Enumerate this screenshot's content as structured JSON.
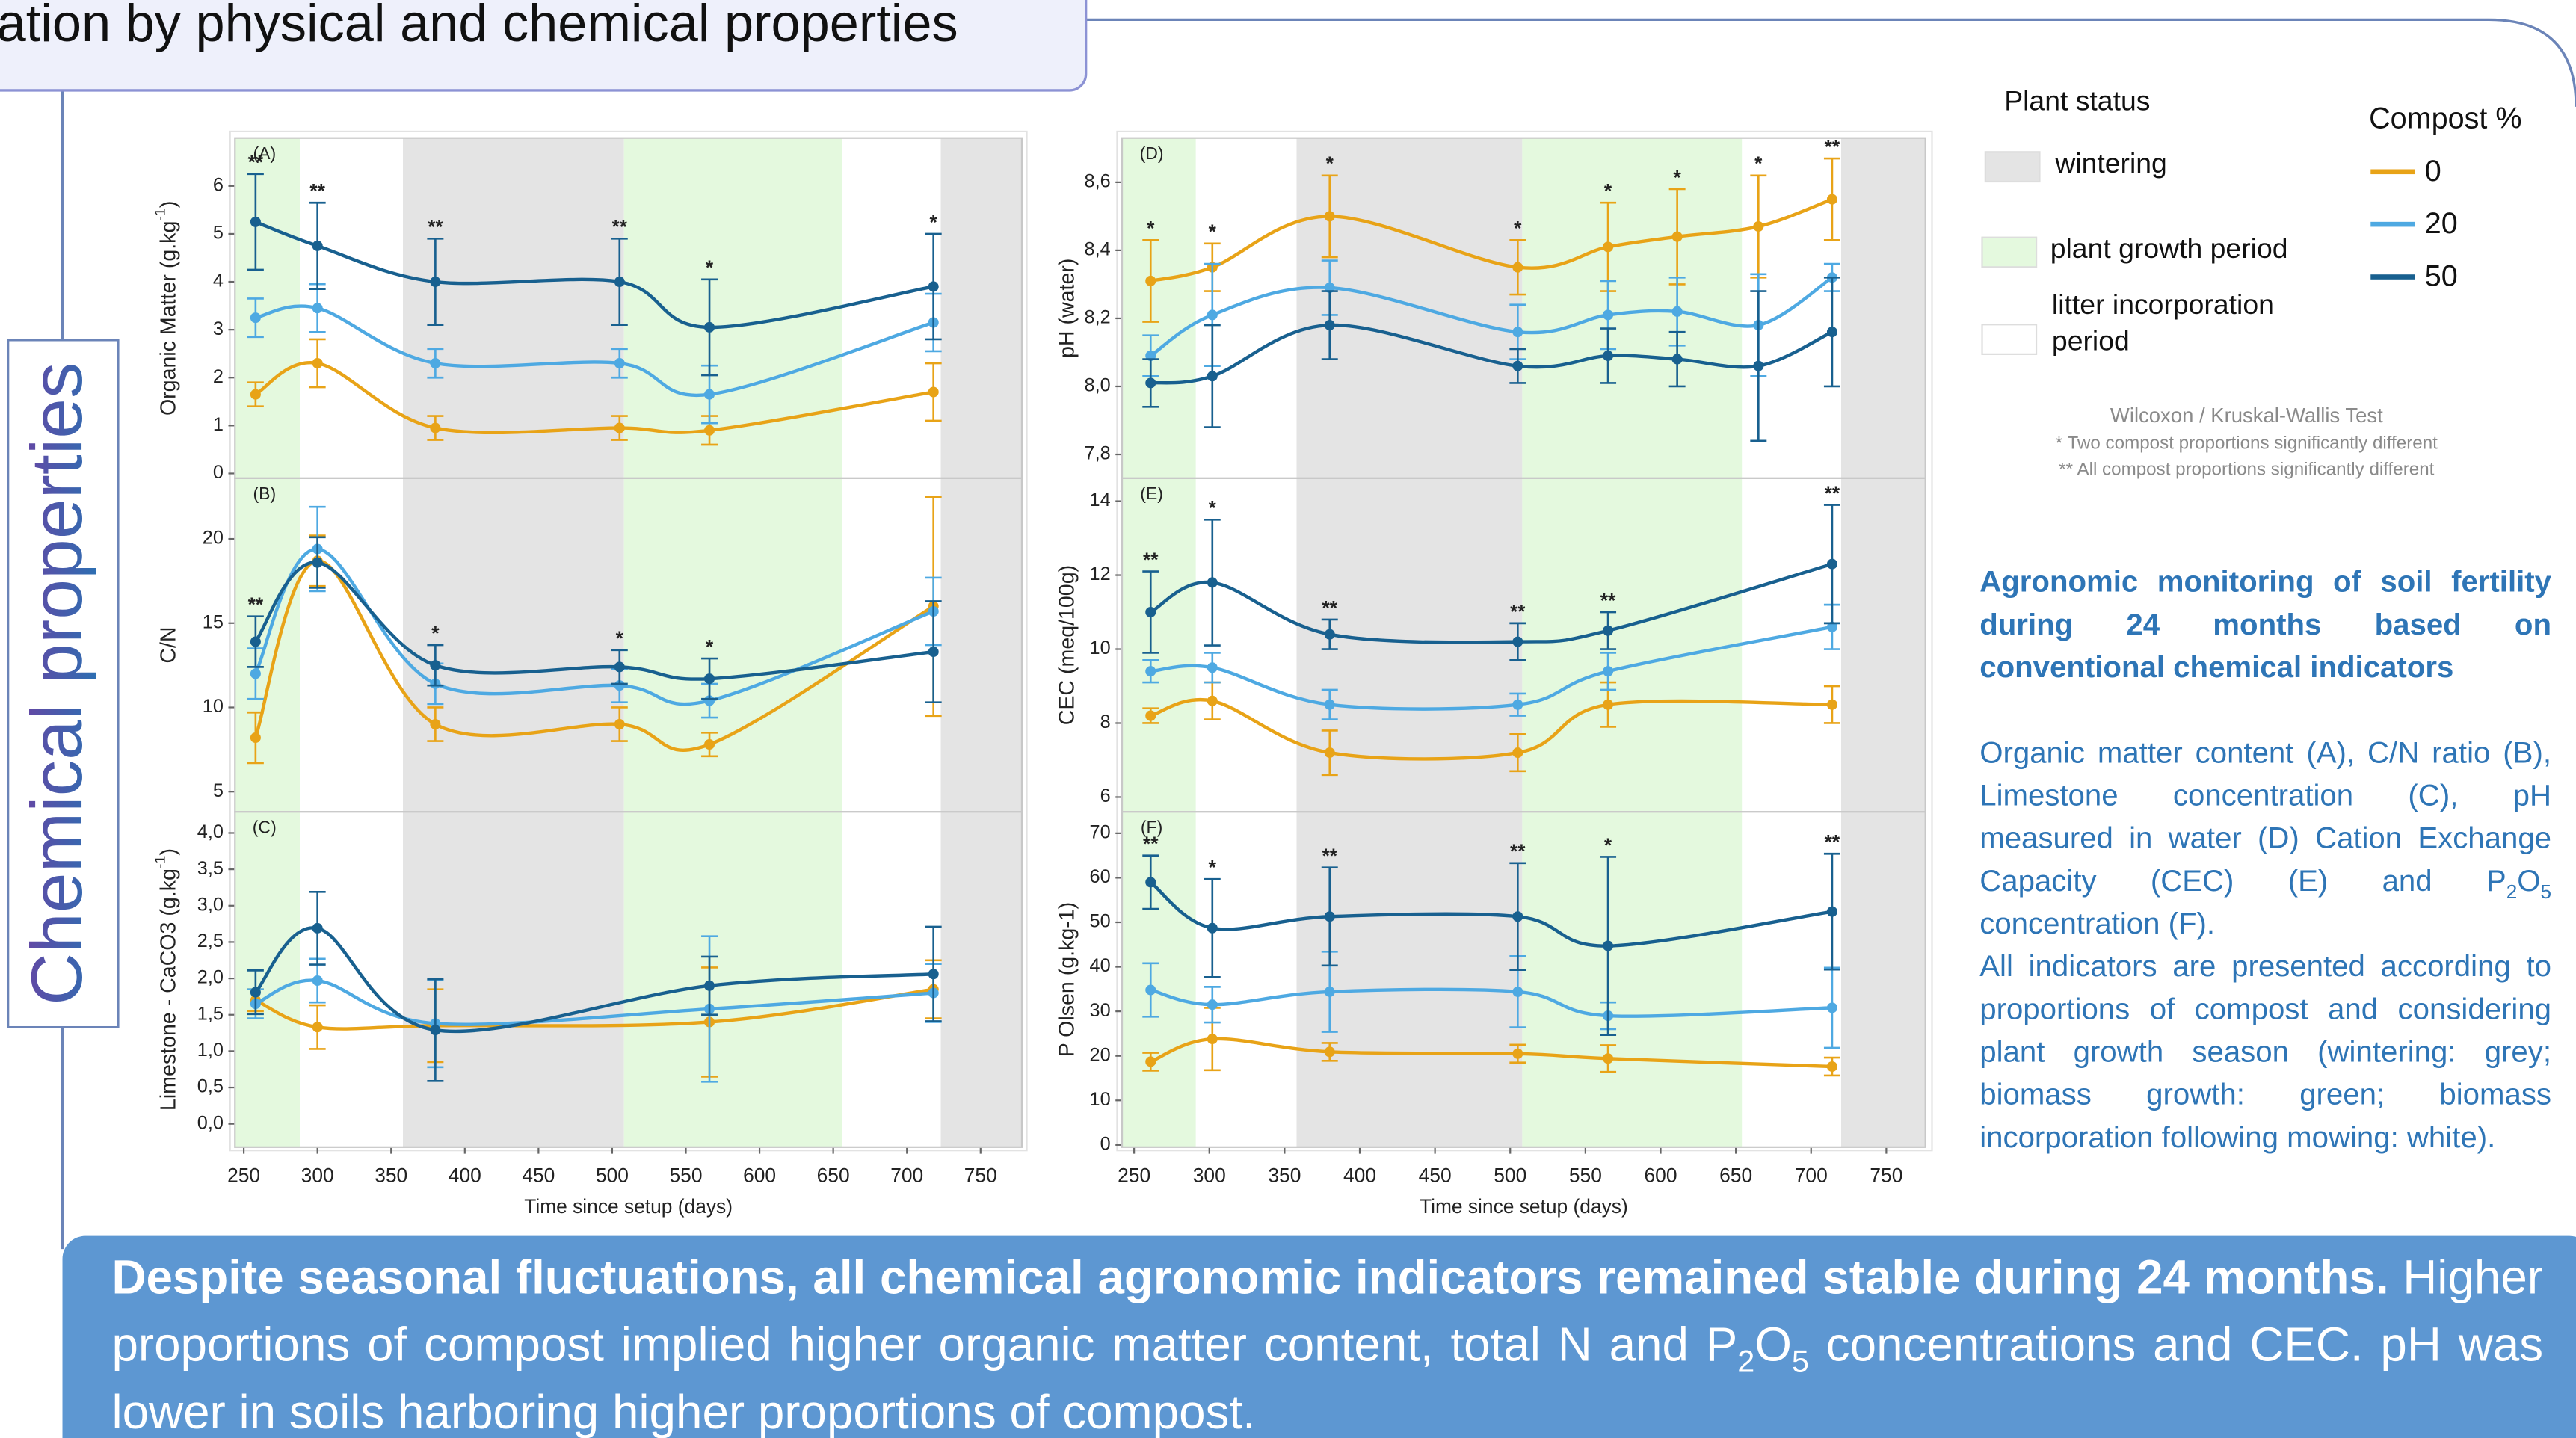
{
  "header": {
    "title": "ation by physical and chemical properties"
  },
  "side_title": "Chemical properties",
  "legend": {
    "status_title": "Plant status",
    "statuses": [
      {
        "label": "wintering",
        "color": "#e4e4e4"
      },
      {
        "label": "plant growth period",
        "color": "#e4f9de"
      },
      {
        "label": "litter incorporation period",
        "color": "#ffffff"
      }
    ],
    "compost_title": "Compost %",
    "compost": [
      {
        "name": "0",
        "color": "#e8a317"
      },
      {
        "name": "20",
        "color": "#4ea9e2"
      },
      {
        "name": "50",
        "color": "#18608f"
      }
    ]
  },
  "test_note": {
    "title": "Wilcoxon / Kruskal-Wallis Test",
    "lines": [
      "* Two compost proportions significantly different",
      "** All compost proportions significantly different"
    ]
  },
  "description": {
    "heading": "Agronomic monitoring of soil fertility during 24 months based on conventional chemical indicators",
    "paragraphs": [
      [
        "Organic matter content (A), C/N ratio (B), Limestone concentration (C), pH measured in water (D) Cation Exchange Capacity (CEC) (E) and P",
        {
          "sub": "2"
        },
        "O",
        {
          "sub": "5"
        },
        " concentration (F)."
      ],
      [
        "All indicators are presented according to proportions of compost and considering plant growth season (wintering: grey; biomass growth: green; biomass incorporation following mowing: white)."
      ]
    ]
  },
  "conclusion": {
    "bold": "Despite seasonal fluctuations, all chemical agronomic indicators remained stable during 24 months.",
    "runs": [
      " Higher proportions of compost implied higher organic matter content, total N and P",
      {
        "sub": "2"
      },
      "O",
      {
        "sub": "5"
      },
      " concentrations and CEC. pH was lower in soils harboring higher proportions of compost."
    ]
  },
  "chart_data": [
    {
      "type": "line",
      "label": "(A)",
      "ylabel": [
        "Organic Matter (g.kg",
        {
          "sup": "-1"
        },
        ")"
      ],
      "x": [
        258,
        300,
        380,
        505,
        566,
        718
      ],
      "xlim": [
        244,
        778
      ],
      "ylim": [
        -0.1,
        7.0
      ],
      "yticks": [
        0,
        1,
        2,
        3,
        4,
        5,
        6
      ],
      "periods": [
        {
          "start": 244,
          "end": 288,
          "color": "#e4f9de"
        },
        {
          "start": 358,
          "end": 508,
          "color": "#e4e4e4"
        },
        {
          "start": 508,
          "end": 656,
          "color": "#e4f9de"
        },
        {
          "start": 723,
          "end": 778,
          "color": "#e4e4e4"
        }
      ],
      "series": [
        {
          "color": "#e8a317",
          "values": [
            1.65,
            2.3,
            0.95,
            0.95,
            0.9,
            1.7
          ],
          "errors": [
            0.25,
            0.5,
            0.25,
            0.25,
            0.3,
            0.6
          ]
        },
        {
          "color": "#4ea9e2",
          "values": [
            3.25,
            3.45,
            2.3,
            2.3,
            1.65,
            3.15
          ],
          "errors": [
            0.4,
            0.5,
            0.3,
            0.3,
            0.6,
            0.6
          ]
        },
        {
          "color": "#18608f",
          "values": [
            5.25,
            4.75,
            4.0,
            4.0,
            3.05,
            3.9
          ],
          "errors": [
            1.0,
            0.9,
            0.9,
            0.9,
            1.0,
            1.1
          ]
        }
      ],
      "annotations": [
        "**",
        "**",
        "**",
        "**",
        "*",
        "*"
      ]
    },
    {
      "type": "line",
      "label": "(B)",
      "ylabel": [
        "C/N"
      ],
      "x": [
        258,
        300,
        380,
        505,
        566,
        718
      ],
      "xlim": [
        244,
        778
      ],
      "ylim": [
        3.8,
        23.6
      ],
      "yticks": [
        5,
        10,
        15,
        20
      ],
      "periods": [
        {
          "start": 244,
          "end": 288,
          "color": "#e4f9de"
        },
        {
          "start": 358,
          "end": 508,
          "color": "#e4e4e4"
        },
        {
          "start": 508,
          "end": 656,
          "color": "#e4f9de"
        },
        {
          "start": 723,
          "end": 778,
          "color": "#e4e4e4"
        }
      ],
      "series": [
        {
          "color": "#e8a317",
          "values": [
            8.2,
            18.7,
            9.0,
            9.0,
            7.8,
            16.0
          ],
          "errors": [
            1.5,
            1.5,
            1.0,
            1.0,
            0.7,
            6.5
          ]
        },
        {
          "color": "#4ea9e2",
          "values": [
            12.0,
            19.4,
            11.4,
            11.3,
            10.4,
            15.7
          ],
          "errors": [
            1.5,
            2.5,
            1.2,
            1.0,
            1.0,
            2.0
          ]
        },
        {
          "color": "#18608f",
          "values": [
            13.9,
            18.6,
            12.5,
            12.4,
            11.7,
            13.3
          ],
          "errors": [
            1.5,
            1.5,
            1.2,
            1.0,
            1.2,
            3.0
          ]
        }
      ],
      "annotations": [
        "**",
        null,
        "*",
        "*",
        "*",
        null
      ]
    },
    {
      "type": "line",
      "label": "(C)",
      "ylabel": [
        "Limestone - CaCO3 (g.kg",
        {
          "sup": "-1"
        },
        ")"
      ],
      "xlabel": "Time since setup (days)",
      "x": [
        258,
        300,
        380,
        566,
        718
      ],
      "xlim": [
        244,
        778
      ],
      "xticks": [
        250,
        300,
        350,
        400,
        450,
        500,
        550,
        600,
        650,
        700,
        750
      ],
      "ylim": [
        -0.32,
        4.29
      ],
      "yticks": [
        {
          "value": 0,
          "label": "0,0"
        },
        {
          "value": 0.5,
          "label": "0,5"
        },
        {
          "value": 1,
          "label": "1,0"
        },
        {
          "value": 1.5,
          "label": "1,5"
        },
        {
          "value": 2,
          "label": "2,0"
        },
        {
          "value": 2.5,
          "label": "2,5"
        },
        {
          "value": 3,
          "label": "3,0"
        },
        {
          "value": 3.5,
          "label": "3,5"
        },
        {
          "value": 4,
          "label": "4,0"
        }
      ],
      "periods": [
        {
          "start": 244,
          "end": 288,
          "color": "#e4f9de"
        },
        {
          "start": 358,
          "end": 508,
          "color": "#e4e4e4"
        },
        {
          "start": 508,
          "end": 656,
          "color": "#e4f9de"
        },
        {
          "start": 723,
          "end": 778,
          "color": "#e4e4e4"
        }
      ],
      "series": [
        {
          "color": "#e8a317",
          "values": [
            1.7,
            1.33,
            1.35,
            1.4,
            1.85
          ],
          "errors": [
            0.15,
            0.3,
            0.5,
            0.75,
            0.4
          ]
        },
        {
          "color": "#4ea9e2",
          "values": [
            1.65,
            1.97,
            1.38,
            1.58,
            1.8
          ],
          "errors": [
            0.2,
            0.3,
            0.6,
            1.0,
            0.4
          ]
        },
        {
          "color": "#18608f",
          "values": [
            1.81,
            2.69,
            1.29,
            1.9,
            2.06
          ],
          "errors": [
            0.3,
            0.5,
            0.7,
            0.4,
            0.65
          ]
        }
      ]
    },
    {
      "type": "line",
      "label": "(D)",
      "ylabel": [
        "pH (water)"
      ],
      "x": [
        261,
        302,
        380,
        505,
        565,
        611,
        665,
        714
      ],
      "xlim": [
        242,
        776
      ],
      "ylim": [
        7.73,
        8.73
      ],
      "yticks": [
        {
          "value": 7.8,
          "label": "7,8"
        },
        {
          "value": 8.0,
          "label": "8,0"
        },
        {
          "value": 8.2,
          "label": "8,2"
        },
        {
          "value": 8.4,
          "label": "8,4"
        },
        {
          "value": 8.6,
          "label": "8,6"
        }
      ],
      "periods": [
        {
          "start": 242,
          "end": 291,
          "color": "#e4f9de"
        },
        {
          "start": 358,
          "end": 508,
          "color": "#e4e4e4"
        },
        {
          "start": 508,
          "end": 654,
          "color": "#e4f9de"
        },
        {
          "start": 720,
          "end": 776,
          "color": "#e4e4e4"
        }
      ],
      "series": [
        {
          "color": "#e8a317",
          "values": [
            8.31,
            8.35,
            8.5,
            8.35,
            8.41,
            8.44,
            8.47,
            8.55
          ],
          "errors": [
            0.12,
            0.07,
            0.12,
            0.08,
            0.13,
            0.14,
            0.15,
            0.12
          ]
        },
        {
          "color": "#4ea9e2",
          "values": [
            8.09,
            8.21,
            8.29,
            8.16,
            8.21,
            8.22,
            8.18,
            8.32
          ],
          "errors": [
            0.06,
            0.15,
            0.08,
            0.08,
            0.1,
            0.1,
            0.15,
            0.04
          ]
        },
        {
          "color": "#18608f",
          "values": [
            8.01,
            8.03,
            8.18,
            8.06,
            8.09,
            8.08,
            8.06,
            8.16
          ],
          "errors": [
            0.07,
            0.15,
            0.1,
            0.05,
            0.08,
            0.08,
            0.22,
            0.16
          ]
        }
      ],
      "annotations": [
        "*",
        "*",
        "*",
        "*",
        "*",
        "*",
        "*",
        "**"
      ]
    },
    {
      "type": "line",
      "label": "(E)",
      "ylabel": [
        "CEC (meq/100g)"
      ],
      "x": [
        261,
        302,
        380,
        505,
        565,
        714
      ],
      "xlim": [
        242,
        776
      ],
      "ylim": [
        5.6,
        14.62
      ],
      "yticks": [
        6,
        8,
        10,
        12,
        14
      ],
      "periods": [
        {
          "start": 242,
          "end": 291,
          "color": "#e4f9de"
        },
        {
          "start": 358,
          "end": 508,
          "color": "#e4e4e4"
        },
        {
          "start": 508,
          "end": 654,
          "color": "#e4f9de"
        },
        {
          "start": 720,
          "end": 776,
          "color": "#e4e4e4"
        }
      ],
      "series": [
        {
          "color": "#e8a317",
          "values": [
            8.2,
            8.6,
            7.2,
            7.2,
            8.5,
            8.5
          ],
          "errors": [
            0.2,
            0.5,
            0.6,
            0.5,
            0.6,
            0.5
          ]
        },
        {
          "color": "#4ea9e2",
          "values": [
            9.4,
            9.5,
            8.5,
            8.5,
            9.4,
            10.6
          ],
          "errors": [
            0.3,
            0.4,
            0.4,
            0.3,
            0.5,
            0.6
          ]
        },
        {
          "color": "#18608f",
          "values": [
            11.0,
            11.8,
            10.4,
            10.2,
            10.5,
            12.3
          ],
          "errors": [
            1.1,
            1.7,
            0.4,
            0.5,
            0.5,
            1.6
          ]
        }
      ],
      "annotations": [
        "**",
        "*",
        "**",
        "**",
        "**",
        "**"
      ]
    },
    {
      "type": "line",
      "label": "(F)",
      "ylabel": [
        "P Olsen (g.kg-1)"
      ],
      "xlabel": "Time since setup (days)",
      "x": [
        261,
        302,
        380,
        505,
        565,
        714
      ],
      "xlim": [
        242,
        776
      ],
      "xticks": [
        250,
        300,
        350,
        400,
        450,
        500,
        550,
        600,
        650,
        700,
        750
      ],
      "ylim": [
        -0.5,
        74.8
      ],
      "yticks": [
        0,
        10,
        20,
        30,
        40,
        50,
        60,
        70
      ],
      "periods": [
        {
          "start": 242,
          "end": 291,
          "color": "#e4f9de"
        },
        {
          "start": 358,
          "end": 508,
          "color": "#e4e4e4"
        },
        {
          "start": 508,
          "end": 654,
          "color": "#e4f9de"
        },
        {
          "start": 720,
          "end": 776,
          "color": "#e4e4e4"
        }
      ],
      "series": [
        {
          "color": "#e8a317",
          "values": [
            18.7,
            23.8,
            20.9,
            20.5,
            19.4,
            17.6
          ],
          "errors": [
            2,
            7,
            2,
            2,
            3,
            2
          ]
        },
        {
          "color": "#4ea9e2",
          "values": [
            34.8,
            31.5,
            34.4,
            34.4,
            29,
            30.8
          ],
          "errors": [
            6,
            4,
            9,
            8,
            3,
            9
          ]
        },
        {
          "color": "#18608f",
          "values": [
            59,
            48.7,
            51.3,
            51.3,
            44.7,
            52.4
          ],
          "errors": [
            6,
            11,
            11,
            12,
            20,
            13
          ]
        }
      ],
      "annotations": [
        "**",
        "*",
        "**",
        "**",
        "*",
        "**"
      ]
    }
  ]
}
